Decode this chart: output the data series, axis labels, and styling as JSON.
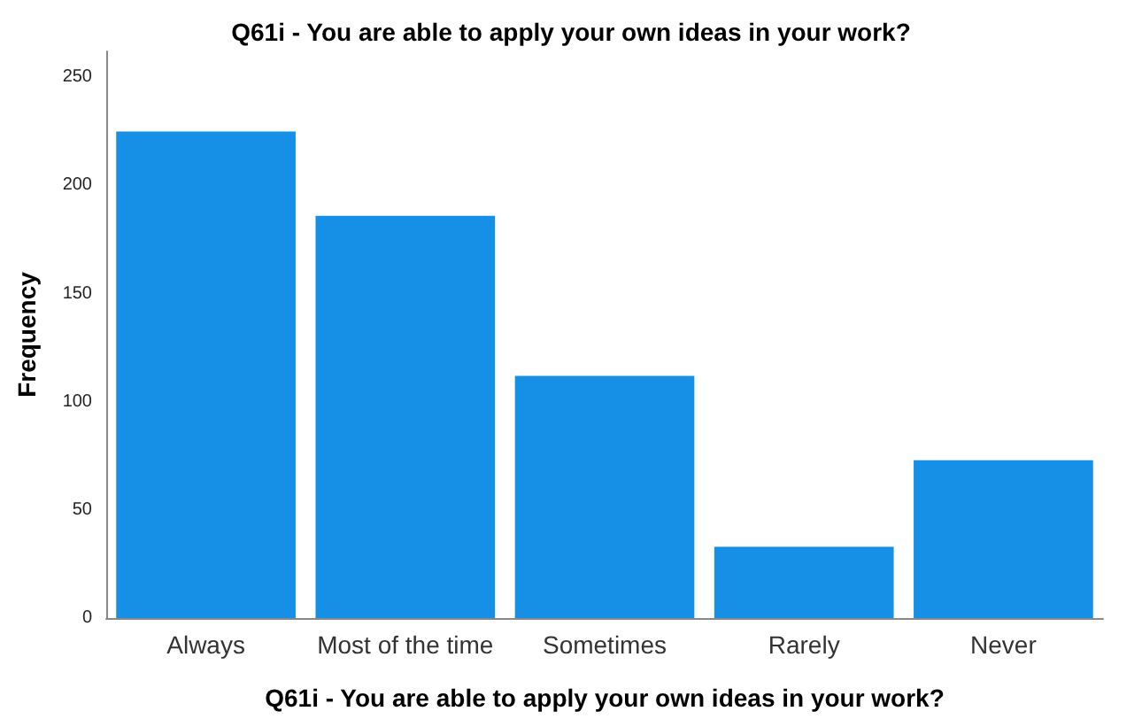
{
  "chart_data": {
    "type": "bar",
    "title": "Q61i - You are able to apply your own ideas in your work?",
    "xlabel": "Q61i - You are able to apply your own ideas in your work?",
    "ylabel": "Frequency",
    "categories": [
      "Always",
      "Most of the time",
      "Sometimes",
      "Rarely",
      "Never"
    ],
    "values": [
      225,
      186,
      112,
      33,
      73
    ],
    "color": "#1590e6",
    "ylim": [
      0,
      262
    ],
    "yticks": [
      0,
      50,
      100,
      150,
      200,
      250
    ],
    "grid": false
  }
}
